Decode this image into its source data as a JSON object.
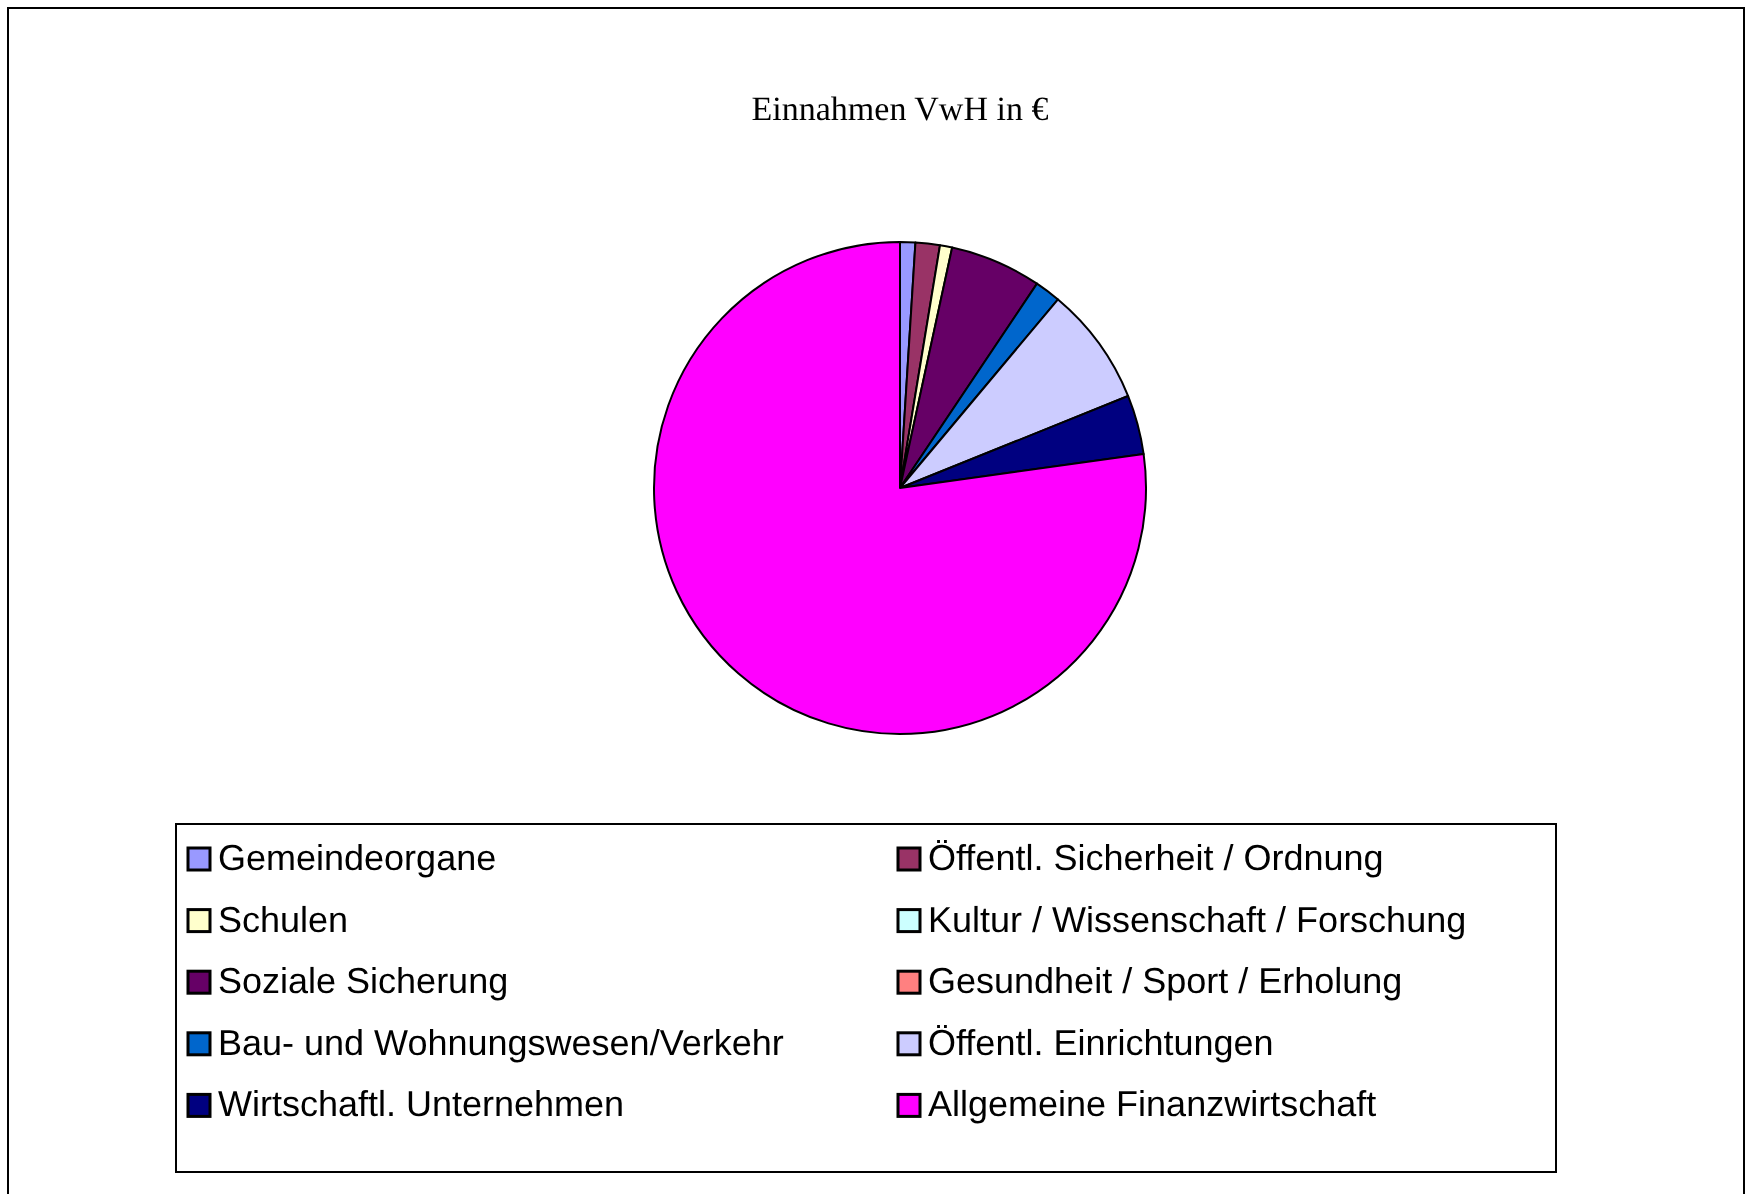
{
  "chart_data": {
    "type": "pie",
    "title": "Einnahmen VwH in €",
    "categories": [
      "Gemeindeorgane",
      "Öffentl. Sicherheit / Ordnung",
      "Schulen",
      "Kultur / Wissenschaft / Forschung",
      "Soziale Sicherung",
      "Gesundheit / Sport / Erholung",
      "Bau- und Wohnungswesen/Verkehr",
      "Öffentl. Einrichtungen",
      "Wirtschaftl. Unternehmen",
      "Allgemeine Finanzwirtschaft"
    ],
    "values": [
      1.0,
      1.6,
      0.8,
      null,
      6.0,
      null,
      1.7,
      7.8,
      3.9,
      77.2
    ],
    "colors": [
      "#9999ff",
      "#993366",
      "#ffffcc",
      "#ccffff",
      "#660066",
      "#ff8080",
      "#0066cc",
      "#ccccff",
      "#000080",
      "#ff00ff"
    ],
    "legend": "bottom"
  }
}
